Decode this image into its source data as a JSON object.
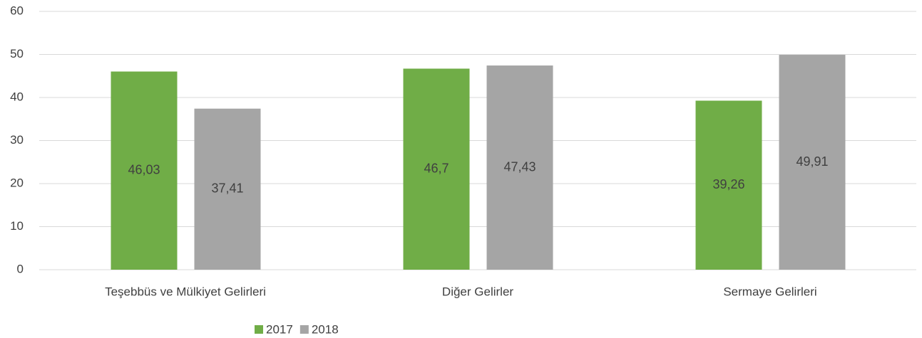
{
  "chart_data": {
    "type": "bar",
    "categories": [
      "Teşebbüs ve Mülkiyet Gelirleri",
      "Diğer Gelirler",
      "Sermaye Gelirleri"
    ],
    "series": [
      {
        "name": "2017",
        "color": "#70ad47",
        "values": [
          46.03,
          46.7,
          39.26
        ],
        "value_labels": [
          "46,03",
          "46,7",
          "39,26"
        ]
      },
      {
        "name": "2018",
        "color": "#a5a5a5",
        "values": [
          37.41,
          47.43,
          49.91
        ],
        "value_labels": [
          "37,41",
          "47,43",
          "49,91"
        ]
      }
    ],
    "ylim": [
      0,
      60
    ],
    "yticks": [
      0,
      10,
      20,
      30,
      40,
      50,
      60
    ],
    "grid": true,
    "legend": "bottom"
  }
}
